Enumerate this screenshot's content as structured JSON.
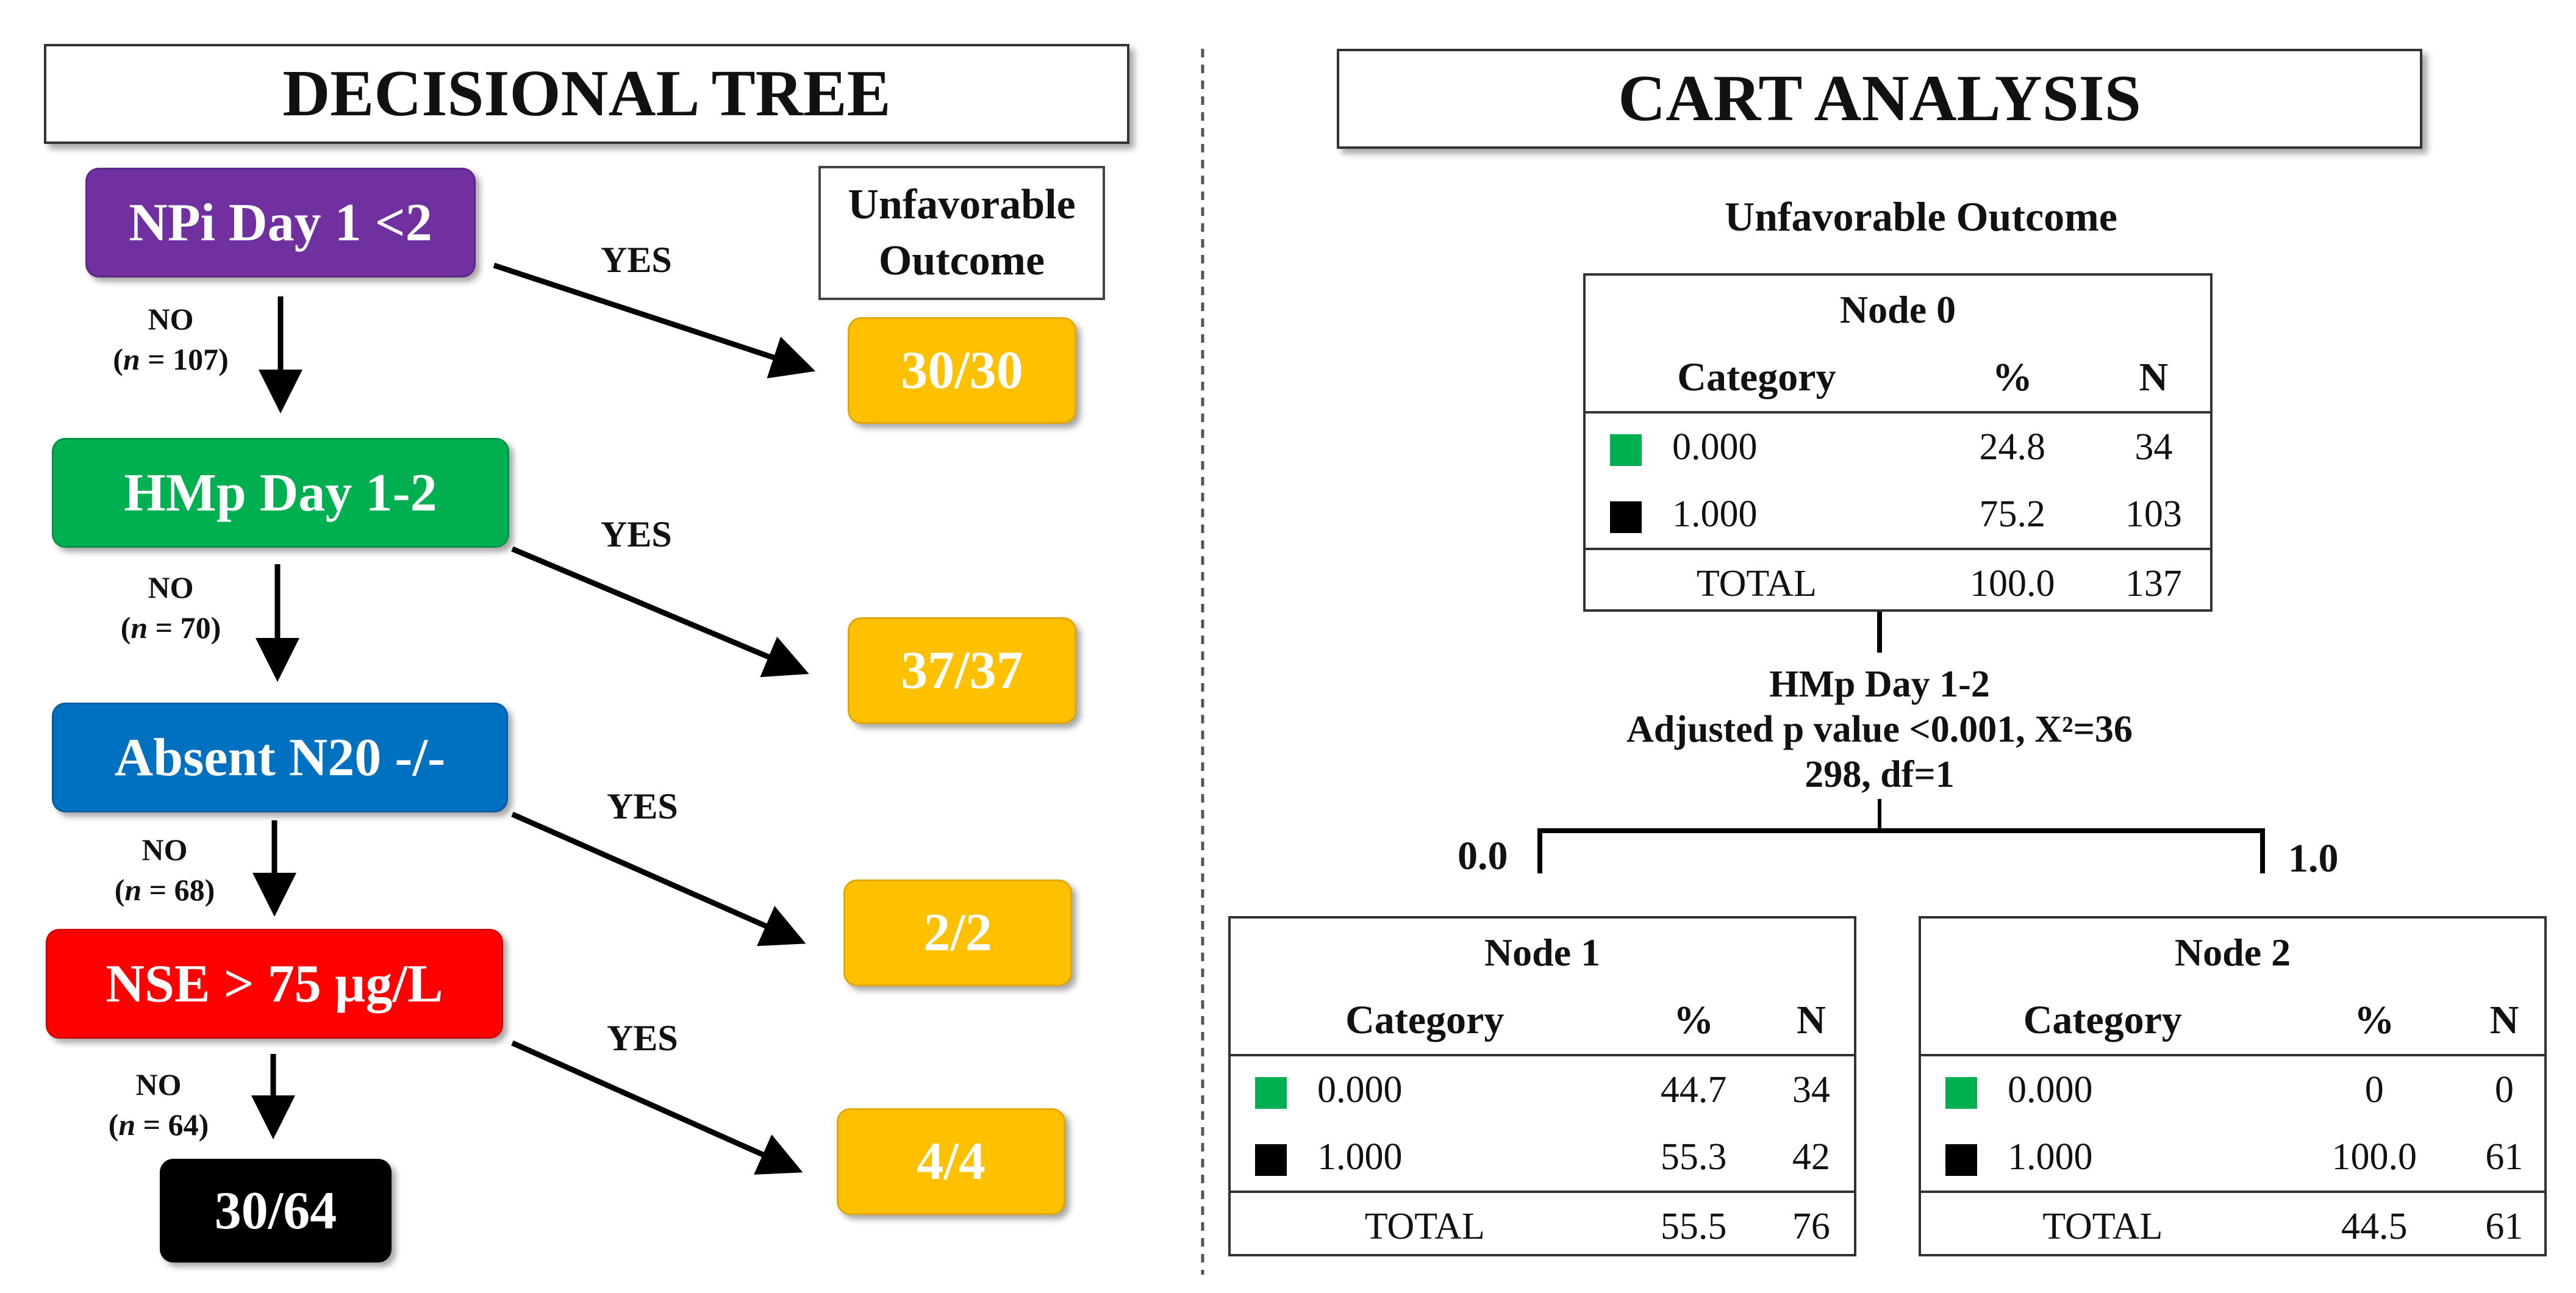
{
  "left": {
    "title": "DECISIONAL TREE",
    "outcome_header_line1": "Unfavorable",
    "outcome_header_line2": "Outcome",
    "steps": [
      {
        "label": "NPi Day 1 <2",
        "color": "#7030a0",
        "result": "30/30",
        "yes": "YES",
        "no": "NO",
        "n": "(n = 107)"
      },
      {
        "label": "HMp Day 1-2",
        "color": "#00b050",
        "result": "37/37",
        "yes": "YES",
        "no": "NO",
        "n": "(n = 70)"
      },
      {
        "label": "Absent N20 -/-",
        "color": "#0070c0",
        "result": "2/2",
        "yes": "YES",
        "no": "NO",
        "n": "(n = 68)"
      },
      {
        "label": "NSE > 75 µg/L",
        "color": "#ff0000",
        "result": "4/4",
        "yes": "YES",
        "no": "NO",
        "n": "(n = 64)"
      }
    ],
    "final": {
      "label": "30/64",
      "color": "#000000"
    }
  },
  "right": {
    "title": "CART ANALYSIS",
    "subtitle": "Unfavorable Outcome",
    "headers": {
      "category": "Category",
      "pct": "%",
      "n": "N"
    },
    "legend_colors": {
      "cat0": "#00b050",
      "cat1": "#000000"
    },
    "node0": {
      "name": "Node 0",
      "rows": [
        {
          "cat": "0.000",
          "pct": "24.8",
          "n": "34"
        },
        {
          "cat": "1.000",
          "pct": "75.2",
          "n": "103"
        }
      ],
      "total": {
        "cat": "TOTAL",
        "pct": "100.0",
        "n": "137"
      }
    },
    "split": {
      "line1": "HMp Day 1-2",
      "line2": "Adjusted p value <0.001, X²=36",
      "line3": "298, df=1"
    },
    "branch_left": "0.0",
    "branch_right": "1.0",
    "node1": {
      "name": "Node 1",
      "rows": [
        {
          "cat": "0.000",
          "pct": "44.7",
          "n": "34"
        },
        {
          "cat": "1.000",
          "pct": "55.3",
          "n": "42"
        }
      ],
      "total": {
        "cat": "TOTAL",
        "pct": "55.5",
        "n": "76"
      }
    },
    "node2": {
      "name": "Node 2",
      "rows": [
        {
          "cat": "0.000",
          "pct": "0",
          "n": "0"
        },
        {
          "cat": "1.000",
          "pct": "100.0",
          "n": "61"
        }
      ],
      "total": {
        "cat": "TOTAL",
        "pct": "44.5",
        "n": "61"
      }
    }
  }
}
